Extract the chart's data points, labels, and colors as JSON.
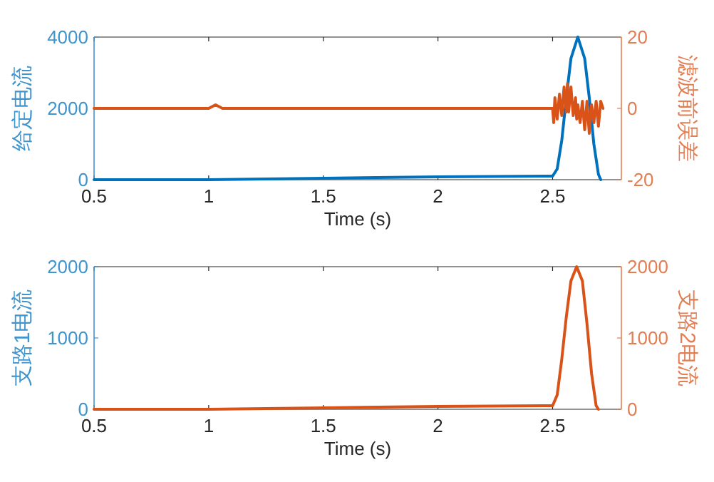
{
  "chart_data": [
    {
      "type": "line",
      "xlabel": "Time (s)",
      "ylabel": "给定电流",
      "y2label": "滤波前误差",
      "xlim": [
        0.5,
        2.8
      ],
      "xticks": [
        0.5,
        1,
        1.5,
        2,
        2.5
      ],
      "ylim": [
        0,
        4000
      ],
      "yticks": [
        0,
        2000,
        4000
      ],
      "y2lim": [
        -20,
        20
      ],
      "y2ticks": [
        -20,
        0,
        20
      ],
      "series": [
        {
          "color": "#0072bd",
          "axis": "y",
          "x": [
            0.5,
            1.0,
            1.5,
            2.0,
            2.5,
            2.52,
            2.54,
            2.56,
            2.58,
            2.61,
            2.64,
            2.66,
            2.68,
            2.7,
            2.71
          ],
          "values": [
            0,
            0,
            40,
            80,
            100,
            300,
            1100,
            2300,
            3400,
            4000,
            3400,
            2300,
            1000,
            150,
            0
          ]
        },
        {
          "color": "#d95319",
          "axis": "y2",
          "x": [
            0.5,
            1.0,
            1.03,
            1.06,
            2.5,
            2.505,
            2.51,
            2.52,
            2.53,
            2.54,
            2.55,
            2.56,
            2.565,
            2.57,
            2.58,
            2.59,
            2.6,
            2.605,
            2.61,
            2.62,
            2.63,
            2.64,
            2.65,
            2.66,
            2.67,
            2.68,
            2.69,
            2.7,
            2.71,
            2.72
          ],
          "values": [
            0,
            0,
            1,
            0,
            0,
            -4,
            3,
            -3,
            4,
            -2,
            6,
            -1,
            7,
            -1,
            6,
            -2,
            3,
            -3,
            1,
            -4,
            2,
            -6,
            2,
            -7,
            1,
            -4,
            2,
            -5,
            2,
            0
          ]
        }
      ]
    },
    {
      "type": "line",
      "xlabel": "Time (s)",
      "ylabel": "支路1电流",
      "y2label": "支路2电流",
      "xlim": [
        0.5,
        2.8
      ],
      "xticks": [
        0.5,
        1,
        1.5,
        2,
        2.5
      ],
      "ylim": [
        0,
        2000
      ],
      "yticks": [
        0,
        1000,
        2000
      ],
      "y2lim": [
        0,
        2000
      ],
      "y2ticks": [
        0,
        1000,
        2000
      ],
      "series": [
        {
          "color": "#d95319",
          "axis": "y2",
          "x": [
            0.5,
            1.0,
            1.5,
            2.0,
            2.5,
            2.52,
            2.54,
            2.56,
            2.58,
            2.605,
            2.63,
            2.65,
            2.67,
            2.69,
            2.7
          ],
          "values": [
            0,
            0,
            20,
            40,
            50,
            200,
            700,
            1300,
            1800,
            2000,
            1800,
            1200,
            500,
            50,
            0
          ]
        }
      ]
    }
  ]
}
